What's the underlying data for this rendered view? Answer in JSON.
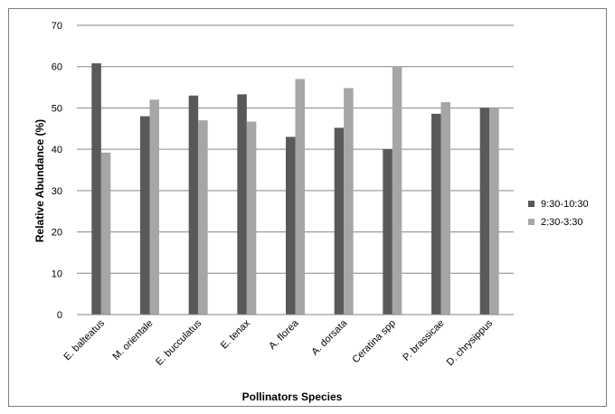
{
  "chart_data": {
    "type": "bar",
    "title": "",
    "xlabel": "Pollinators Species",
    "ylabel": "Relative Abundance (%)",
    "ylim": [
      0,
      70
    ],
    "yticks": [
      0,
      10,
      20,
      30,
      40,
      50,
      60,
      70
    ],
    "grid": true,
    "legend_position": "right",
    "categories": [
      "E. balteatus",
      "M. orientale",
      "E. bucculatus",
      "E. tenax",
      "A. florea",
      "A. dorsata",
      "Ceratina spp",
      "P. brassicae",
      "D. chrysippus"
    ],
    "series": [
      {
        "name": "9:30-10:30",
        "color": "#595959",
        "values": [
          60.8,
          48.0,
          53.0,
          53.3,
          43.0,
          45.2,
          40.0,
          48.6,
          50.0
        ]
      },
      {
        "name": "2:30-3:30",
        "color": "#a6a6a6",
        "values": [
          39.2,
          52.0,
          47.0,
          46.7,
          57.0,
          54.8,
          60.0,
          51.4,
          50.0
        ]
      }
    ]
  }
}
